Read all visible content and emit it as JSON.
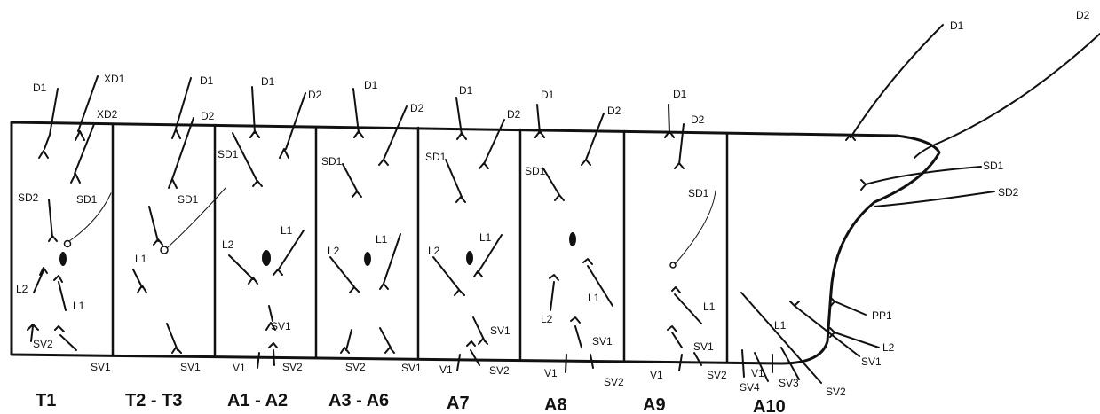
{
  "segments": {
    "t1": "T1",
    "t2_t3": "T2 - T3",
    "a1_a2": "A1 - A2",
    "a3_a6": "A3 - A6",
    "a7": "A7",
    "a8": "A8",
    "a9": "A9",
    "a10": "A10"
  },
  "setae": {
    "t1": {
      "d1": "D1",
      "xd1": "XD1",
      "xd2": "XD2",
      "sd2": "SD2",
      "sd1": "SD1",
      "l2": "L2",
      "l1": "L1",
      "sv2": "SV2",
      "sv1": "SV1"
    },
    "t2": {
      "d1": "D1",
      "d2": "D2",
      "sd1": "SD1",
      "l1": "L1",
      "sv1": "SV1"
    },
    "a1": {
      "d1": "D1",
      "d2": "D2",
      "sd1": "SD1",
      "l1": "L1",
      "l2": "L2",
      "sv1": "SV1",
      "v1": "V1",
      "sv2": "SV2"
    },
    "a3": {
      "d1": "D1",
      "d2": "D2",
      "sd1": "SD1",
      "l1": "L1",
      "l2": "L2",
      "sv2": "SV2",
      "sv1": "SV1"
    },
    "a7": {
      "d1": "D1",
      "d2": "D2",
      "sd1": "SD1",
      "l1": "L1",
      "l2": "L2",
      "sv1": "SV1",
      "v1": "V1",
      "sv2": "SV2"
    },
    "a8": {
      "d1": "D1",
      "d2": "D2",
      "sd1": "SD1",
      "l1": "L1",
      "l2": "L2",
      "sv1": "SV1",
      "v1": "V1",
      "sv2": "SV2"
    },
    "a9": {
      "d1": "D1",
      "d2": "D2",
      "sd1": "SD1",
      "l1": "L1",
      "sv1": "SV1",
      "v1": "V1",
      "sv2": "SV2"
    },
    "a10": {
      "d1": "D1",
      "d2": "D2",
      "sd1": "SD1",
      "sd2": "SD2",
      "pp1": "PP1",
      "l1": "L1",
      "l2": "L2",
      "sv1": "SV1",
      "sv2": "SV2",
      "sv3": "SV3",
      "sv4": "SV4",
      "v1": "V1"
    }
  }
}
